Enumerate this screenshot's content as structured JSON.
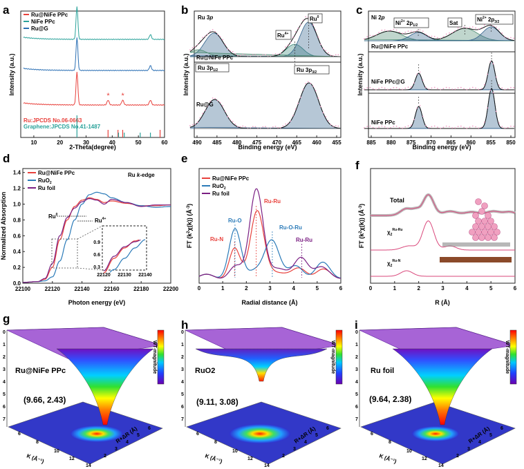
{
  "panels": {
    "a": {
      "letter": "a",
      "xlabel": "2-Theta(degree)",
      "ylabel": "Intensity (a.u.)",
      "xticks": [
        "10",
        "20",
        "30",
        "40",
        "50",
        "60"
      ],
      "legend": [
        "Ru@NiFe PPc",
        "NiFe PPc",
        "Ru@G"
      ],
      "ref1": "Ru:JPCDS No.06-0663",
      "ref2": "Graphene:JPCDS No.41-1487"
    },
    "b": {
      "letter": "b",
      "title": "Ru 3p",
      "xlabel": "Binding energy (eV)",
      "ylabel": "Intensity (a.u.)",
      "xticks": [
        "490",
        "485",
        "480",
        "475",
        "470",
        "465",
        "460",
        "455"
      ],
      "label_ru0": "Ru",
      "sup_ru0": "0",
      "label_ru4": "Ru",
      "sup_ru4": "4+",
      "sample1": "Ru@NiFe PPc",
      "sample2": "Ru@G",
      "p12": "Ru 3p",
      "p12_sub": "1/2",
      "p32": "Ru 3p",
      "p32_sub": "3/2"
    },
    "c": {
      "letter": "c",
      "title": "Ni 2p",
      "xlabel": "Binding energy (eV)",
      "ylabel": "Intensity (a.u.)",
      "xticks": [
        "885",
        "880",
        "875",
        "870",
        "865",
        "860",
        "855",
        "850"
      ],
      "p12": "Ni",
      "p12_sup": "2+",
      "p12_tail": "2p",
      "p12_sub": "1/2",
      "sat": "Sat",
      "p32": "Ni",
      "p32_sup": "2+",
      "p32_tail": "2p",
      "p32_sub": "3/2",
      "s1": "Ru@NiFe PPc",
      "s2": "NiFe PPc@G",
      "s3": "NiFe PPc"
    },
    "d": {
      "letter": "d",
      "xlabel": "Photon energy (eV)",
      "ylabel": "Normalized Absorption",
      "xticks": [
        "22100",
        "22120",
        "22140",
        "22160",
        "22180",
        "22200"
      ],
      "yticks": [
        "0.0",
        "0.2",
        "0.4",
        "0.6",
        "0.8",
        "1.0",
        "1.2",
        "1.4"
      ],
      "legend": [
        "Ru@NiFe PPc",
        "RuO2",
        "Ru foil"
      ],
      "edge": "Ru k-edge",
      "ru0": "Ru",
      "ru0_sup": "0",
      "ru4": "Ru",
      "ru4_sup": "4+",
      "inset_xticks": [
        "22120",
        "22130",
        "22140"
      ],
      "inset_yticks": [
        "0.9",
        "0.6",
        "0.3"
      ]
    },
    "e": {
      "letter": "e",
      "xlabel": "Radial distance (Å)",
      "ylabel": "FT (k²χ(k)) (Å⁻³)",
      "xticks": [
        "0",
        "1",
        "2",
        "3",
        "4",
        "5",
        "6"
      ],
      "legend": [
        "Ru@NiFe PPc",
        "RuO2",
        "Ru foil"
      ],
      "ann": [
        "Ru-N",
        "Ru-O",
        "Ru-Ru",
        "Ru-O-Ru",
        "Ru-Ru"
      ]
    },
    "f": {
      "letter": "f",
      "xlabel": "R (Å)",
      "ylabel": "FT (k²χ(k)) (Å⁻³)",
      "xticks": [
        "0",
        "1",
        "2",
        "3",
        "4",
        "5",
        "6"
      ],
      "total": "Total",
      "chi": "χ",
      "chi_sub": "2",
      "rr": "Ru-Ru",
      "rn": "Ru-N"
    },
    "g": {
      "letter": "g",
      "name": "Ru@NiFe PPc",
      "coord": "(9.66, 2.43)",
      "kaxis": "K (Å⁻¹)",
      "raxis": "R+ΔR (Å)",
      "cbar": "WT-magnitude"
    },
    "h": {
      "letter": "h",
      "name": "RuO2",
      "coord": "(9.11, 3.08)",
      "kaxis": "K (Å⁻¹)",
      "raxis": "R+ΔR (Å)",
      "cbar": "WT-magnitude"
    },
    "i": {
      "letter": "i",
      "name": "Ru foil",
      "coord": "(9.64, 2.38)",
      "kaxis": "K (Å⁻¹)",
      "raxis": "R+ΔR (Å)",
      "cbar": "WT-magnitude"
    }
  },
  "colors": {
    "ru_nife": "#e8403b",
    "nife": "#2aa29a",
    "ru_g": "#2a6fb4",
    "ruo2": "#2a7ab8",
    "ru_foil": "#7a1e82",
    "fit_pink": "#d9467a"
  },
  "chart_data": [
    {
      "type": "line",
      "panel": "a",
      "xlabel": "2-Theta(degree)",
      "ylabel": "Intensity (a.u.)",
      "xlim": [
        5,
        60
      ],
      "series": [
        {
          "name": "Ru@NiFe PPc",
          "peaks": [
            26.5,
            38.4,
            44.0,
            54.6
          ]
        },
        {
          "name": "NiFe PPc",
          "peaks": [
            26.5,
            54.6
          ]
        },
        {
          "name": "Ru@G",
          "peaks": [
            26.5,
            54.6
          ]
        }
      ],
      "reference_lines": {
        "Ru:JPCDS No.06-0663": [
          38.4,
          42.2,
          44.0,
          58.3
        ],
        "Graphene:JPCDS No.41-1487": [
          26.5,
          42.4,
          44.6,
          50.7,
          54.6
        ]
      }
    },
    {
      "type": "line",
      "panel": "b",
      "xlabel": "Binding energy (eV)",
      "ylabel": "Intensity (a.u.)",
      "xlim": [
        490,
        455
      ],
      "series": [
        {
          "name": "Ru@NiFe PPc",
          "peaks": [
            485.3,
            465.8,
            462.7
          ]
        },
        {
          "name": "Ru@G",
          "peaks": [
            485.1,
            462.6
          ]
        }
      ]
    },
    {
      "type": "line",
      "panel": "c",
      "xlabel": "Binding energy (eV)",
      "ylabel": "Intensity (a.u.)",
      "xlim": [
        885,
        850
      ],
      "series": [
        {
          "name": "Ru@NiFe PPc",
          "peaks": [
            873.1,
            862.0,
            855.7
          ]
        },
        {
          "name": "NiFe PPc@G",
          "peaks": [
            873.0,
            855.6
          ]
        },
        {
          "name": "NiFe PPc",
          "peaks": [
            873.0,
            855.6
          ]
        }
      ]
    },
    {
      "type": "line",
      "panel": "d",
      "xlabel": "Photon energy (eV)",
      "ylabel": "Normalized Absorption",
      "xlim": [
        22100,
        22200
      ],
      "ylim": [
        0.0,
        1.4
      ],
      "series": [
        {
          "name": "Ru@NiFe PPc",
          "x": [
            22100,
            22110,
            22115,
            22120,
            22125,
            22130,
            22135,
            22140,
            22145,
            22150,
            22155,
            22160,
            22170,
            22180,
            22190,
            22200
          ],
          "y": [
            0.01,
            0.02,
            0.05,
            0.2,
            0.55,
            0.8,
            0.97,
            1.05,
            1.08,
            1.06,
            1.02,
            1.04,
            1.01,
            0.98,
            0.98,
            0.99
          ]
        },
        {
          "name": "RuO2",
          "x": [
            22100,
            22110,
            22115,
            22120,
            22125,
            22130,
            22135,
            22140,
            22145,
            22150,
            22155,
            22160,
            22170,
            22180,
            22190,
            22200
          ],
          "y": [
            0.01,
            0.02,
            0.03,
            0.08,
            0.28,
            0.55,
            0.8,
            1.0,
            1.12,
            1.15,
            1.13,
            1.08,
            1.02,
            0.98,
            0.96,
            0.97
          ]
        },
        {
          "name": "Ru foil",
          "x": [
            22100,
            22110,
            22115,
            22120,
            22125,
            22130,
            22135,
            22140,
            22145,
            22150,
            22155,
            22160,
            22170,
            22180,
            22190,
            22200
          ],
          "y": [
            0.01,
            0.02,
            0.06,
            0.25,
            0.6,
            0.83,
            0.95,
            1.03,
            1.07,
            1.05,
            1.0,
            1.06,
            1.02,
            0.97,
            0.99,
            0.99
          ]
        }
      ]
    },
    {
      "type": "line",
      "panel": "e",
      "xlabel": "Radial distance (Å)",
      "ylabel": "FT (k²χ(k)) (Å⁻³)",
      "xlim": [
        0,
        6
      ],
      "series": [
        {
          "name": "Ru@NiFe PPc",
          "peaks": [
            1.5,
            2.4
          ]
        },
        {
          "name": "RuO2",
          "peaks": [
            1.5,
            3.1,
            5.2
          ]
        },
        {
          "name": "Ru foil",
          "peaks": [
            2.4,
            4.3
          ]
        }
      ]
    },
    {
      "type": "line",
      "panel": "f",
      "xlabel": "R (Å)",
      "ylabel": "FT (k²χ(k)) (Å⁻³)",
      "xlim": [
        0,
        6
      ],
      "series": [
        {
          "name": "Total",
          "peaks": [
            1.5,
            2.4
          ]
        },
        {
          "name": "χ2 Ru-Ru",
          "peaks": [
            2.4
          ]
        },
        {
          "name": "χ2 Ru-N",
          "peaks": [
            1.5
          ]
        }
      ]
    },
    {
      "type": "heatmap",
      "panel": "g",
      "name": "Ru@NiFe PPc",
      "kmax_k": 9.66,
      "kmax_r": 2.43
    },
    {
      "type": "heatmap",
      "panel": "h",
      "name": "RuO2",
      "kmax_k": 9.11,
      "kmax_r": 3.08
    },
    {
      "type": "heatmap",
      "panel": "i",
      "name": "Ru foil",
      "kmax_k": 9.64,
      "kmax_r": 2.38
    }
  ]
}
